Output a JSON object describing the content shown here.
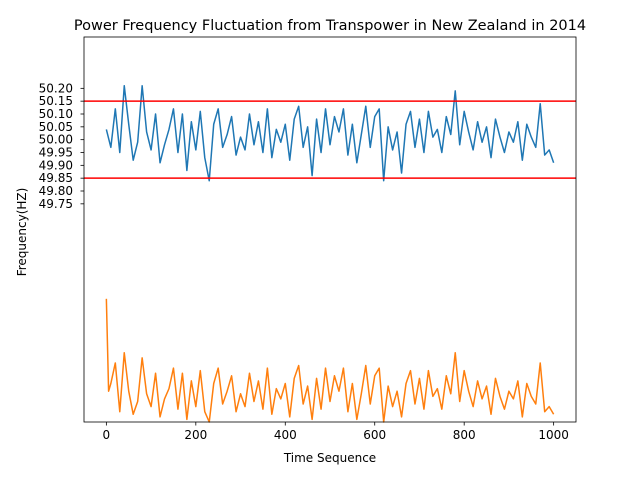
{
  "chart_data": {
    "type": "line",
    "title": "Power Frequency Fluctuation from Transpower in  New Zealand in 2014",
    "xlabel": "Time Sequence",
    "ylabel": "Frequency(HZ)",
    "xlim": [
      -50,
      1050
    ],
    "xticks": [
      0,
      200,
      400,
      600,
      800,
      1000
    ],
    "xtick_labels": [
      "0",
      "200",
      "400",
      "600",
      "800",
      "1000"
    ],
    "ylim": [
      48.9,
      50.4
    ],
    "yticks": [
      49.75,
      49.8,
      49.85,
      49.9,
      49.95,
      50.0,
      50.05,
      50.1,
      50.15,
      50.2
    ],
    "ytick_labels": [
      "49.75",
      "49.80",
      "49.85",
      "49.90",
      "49.95",
      "50.00",
      "50.05",
      "50.10",
      "50.15",
      "50.20"
    ],
    "grid": false,
    "legend": "none",
    "reference_lines": [
      {
        "y": 50.15,
        "color": "#ff0000"
      },
      {
        "y": 49.85,
        "color": "#ff0000"
      }
    ],
    "series": [
      {
        "color": "#1f77b4",
        "x": [
          0,
          10,
          20,
          30,
          40,
          50,
          60,
          70,
          80,
          90,
          100,
          110,
          120,
          130,
          140,
          150,
          160,
          170,
          180,
          190,
          200,
          210,
          220,
          230,
          240,
          250,
          260,
          270,
          280,
          290,
          300,
          310,
          320,
          330,
          340,
          350,
          360,
          370,
          380,
          390,
          400,
          410,
          420,
          430,
          440,
          450,
          460,
          470,
          480,
          490,
          500,
          510,
          520,
          530,
          540,
          550,
          560,
          570,
          580,
          590,
          600,
          610,
          620,
          630,
          640,
          650,
          660,
          670,
          680,
          690,
          700,
          710,
          720,
          730,
          740,
          750,
          760,
          770,
          780,
          790,
          800,
          810,
          820,
          830,
          840,
          850,
          860,
          870,
          880,
          890,
          900,
          910,
          920,
          930,
          940,
          950,
          960,
          970,
          980,
          990,
          1000
        ],
        "y": [
          50.04,
          49.97,
          50.12,
          49.95,
          50.21,
          50.06,
          49.92,
          49.99,
          50.21,
          50.03,
          49.96,
          50.1,
          49.91,
          49.98,
          50.04,
          50.12,
          49.95,
          50.1,
          49.88,
          50.07,
          49.96,
          50.11,
          49.93,
          49.84,
          50.06,
          50.12,
          49.97,
          50.02,
          50.09,
          49.94,
          50.01,
          49.96,
          50.1,
          49.98,
          50.07,
          49.95,
          50.12,
          49.93,
          50.04,
          49.99,
          50.06,
          49.92,
          50.08,
          50.13,
          49.97,
          50.05,
          49.86,
          50.08,
          49.95,
          50.12,
          49.98,
          50.09,
          50.03,
          50.12,
          49.94,
          50.06,
          49.91,
          50.02,
          50.13,
          49.97,
          50.09,
          50.12,
          49.84,
          50.05,
          49.96,
          50.03,
          49.87,
          50.06,
          50.11,
          49.97,
          50.08,
          49.95,
          50.11,
          50.01,
          50.04,
          49.95,
          50.09,
          50.02,
          50.19,
          49.98,
          50.11,
          50.03,
          49.96,
          50.07,
          49.99,
          50.05,
          49.93,
          50.08,
          50.01,
          49.95,
          50.03,
          49.99,
          50.07,
          49.92,
          50.06,
          50.01,
          49.97,
          50.14,
          49.94,
          49.96,
          49.91
        ]
      },
      {
        "color": "#ff7f0e",
        "x": [
          0,
          5,
          10,
          20,
          30,
          40,
          50,
          60,
          70,
          80,
          90,
          100,
          110,
          120,
          130,
          140,
          150,
          160,
          170,
          180,
          190,
          200,
          210,
          220,
          230,
          240,
          250,
          260,
          270,
          280,
          290,
          300,
          310,
          320,
          330,
          340,
          350,
          360,
          370,
          380,
          390,
          400,
          410,
          420,
          430,
          440,
          450,
          460,
          470,
          480,
          490,
          500,
          510,
          520,
          530,
          540,
          550,
          560,
          570,
          580,
          590,
          600,
          610,
          620,
          630,
          640,
          650,
          660,
          670,
          680,
          690,
          700,
          710,
          720,
          730,
          740,
          750,
          760,
          770,
          780,
          790,
          800,
          810,
          820,
          830,
          840,
          850,
          860,
          870,
          880,
          890,
          900,
          910,
          920,
          930,
          940,
          950,
          960,
          970,
          980,
          990,
          1000
        ],
        "y": [
          49.38,
          49.02,
          49.05,
          49.13,
          48.94,
          49.17,
          49.02,
          48.93,
          48.98,
          49.15,
          49.01,
          48.96,
          49.09,
          48.92,
          48.99,
          49.03,
          49.11,
          48.95,
          49.09,
          48.91,
          49.06,
          48.96,
          49.1,
          48.94,
          48.9,
          49.05,
          49.11,
          48.97,
          49.02,
          49.08,
          48.94,
          49.01,
          48.96,
          49.09,
          48.98,
          49.06,
          48.95,
          49.11,
          48.93,
          49.03,
          48.99,
          49.05,
          48.92,
          49.07,
          49.12,
          48.97,
          49.04,
          48.91,
          49.07,
          48.95,
          49.11,
          48.98,
          49.08,
          49.02,
          49.11,
          48.94,
          49.05,
          48.91,
          49.01,
          49.12,
          48.97,
          49.08,
          49.11,
          48.9,
          49.04,
          48.96,
          49.02,
          48.92,
          49.05,
          49.1,
          48.97,
          49.07,
          48.95,
          49.1,
          49.0,
          49.03,
          48.95,
          49.08,
          49.01,
          49.17,
          48.98,
          49.1,
          49.02,
          48.96,
          49.06,
          48.99,
          49.04,
          48.93,
          49.07,
          49.0,
          48.95,
          49.02,
          48.99,
          49.06,
          48.92,
          49.05,
          49.0,
          48.97,
          49.13,
          48.94,
          48.96,
          48.93
        ]
      }
    ]
  }
}
